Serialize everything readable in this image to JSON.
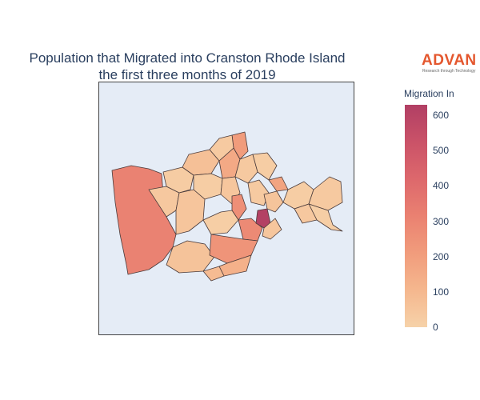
{
  "chart": {
    "title_line1": "Population that Migrated into Cranston Rhode Island",
    "title_line2": "the first three months of 2019"
  },
  "logo": {
    "word": "ADVAN",
    "tagline": "Research through Technology",
    "color": "#e4572e"
  },
  "colorbar": {
    "title": "Migration In",
    "ticks": [
      "0",
      "100",
      "200",
      "300",
      "400",
      "500",
      "600"
    ],
    "min": 0,
    "max": 630,
    "colors": [
      "#f6d2a9",
      "#f5b78e",
      "#f19c7c",
      "#ea8171",
      "#dd686c",
      "#ca5268",
      "#b13f64"
    ]
  },
  "colors": {
    "map_background": "#e5ecf6",
    "region_border": "#4a3b3b"
  },
  "chart_data": {
    "type": "choropleth",
    "title": "Population that Migrated into Cranston Rhode Island the first three months of 2019",
    "colorbar_label": "Migration In",
    "range": [
      0,
      630
    ],
    "regions": [
      {
        "id": "west",
        "value": 310
      },
      {
        "id": "south-central",
        "value": 60
      },
      {
        "id": "central-1",
        "value": 40
      },
      {
        "id": "central-2",
        "value": 25
      },
      {
        "id": "central-3",
        "value": 50
      },
      {
        "id": "north-1",
        "value": 70
      },
      {
        "id": "north-2",
        "value": 160
      },
      {
        "id": "north-3",
        "value": 210
      },
      {
        "id": "north-4",
        "value": 30
      },
      {
        "id": "mid-1",
        "value": 20
      },
      {
        "id": "mid-2",
        "value": 45
      },
      {
        "id": "mid-3",
        "value": 260
      },
      {
        "id": "mid-4",
        "value": 35
      },
      {
        "id": "east-central-1",
        "value": 280
      },
      {
        "id": "east-central-2",
        "value": 240
      },
      {
        "id": "east-central-3",
        "value": 15
      },
      {
        "id": "peak",
        "value": 620
      },
      {
        "id": "east-1",
        "value": 30
      },
      {
        "id": "east-2",
        "value": 55
      },
      {
        "id": "east-3",
        "value": 180
      },
      {
        "id": "east-4",
        "value": 20
      },
      {
        "id": "south-east-1",
        "value": 130
      },
      {
        "id": "south-east-2",
        "value": 90
      },
      {
        "id": "south-east-3",
        "value": 45
      },
      {
        "id": "far-east-1",
        "value": 20
      },
      {
        "id": "far-east-2",
        "value": 35
      },
      {
        "id": "far-east-3",
        "value": 15
      },
      {
        "id": "far-east-4",
        "value": 40
      }
    ]
  }
}
